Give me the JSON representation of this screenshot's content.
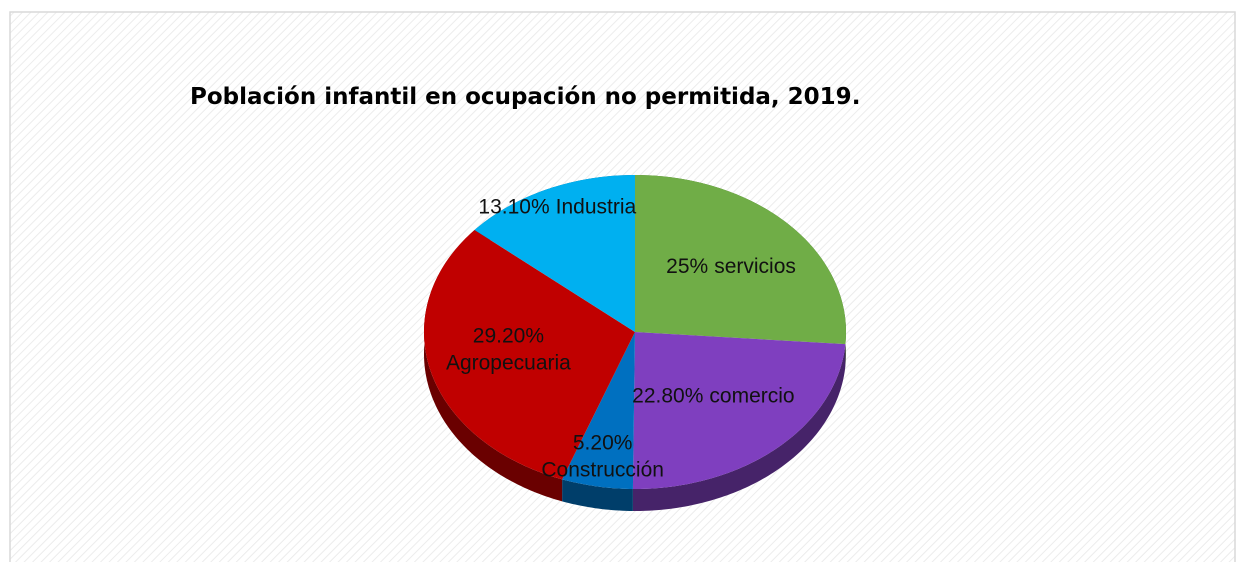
{
  "chart_data": {
    "type": "pie",
    "title": "Población infantil en ocupación no permitida, 2019.",
    "categories": [
      "servicios",
      "comercio",
      "Construcción",
      "Agropecuaria",
      "Industria"
    ],
    "values": [
      25,
      22.8,
      5.2,
      29.2,
      13.1
    ],
    "value_labels": [
      "25%",
      "22.80%",
      "5.20%",
      "29.20%",
      "13.10%"
    ],
    "colors": [
      "#70ad47",
      "#7f3fbf",
      "#0070c0",
      "#c00000",
      "#00b0f0"
    ]
  }
}
